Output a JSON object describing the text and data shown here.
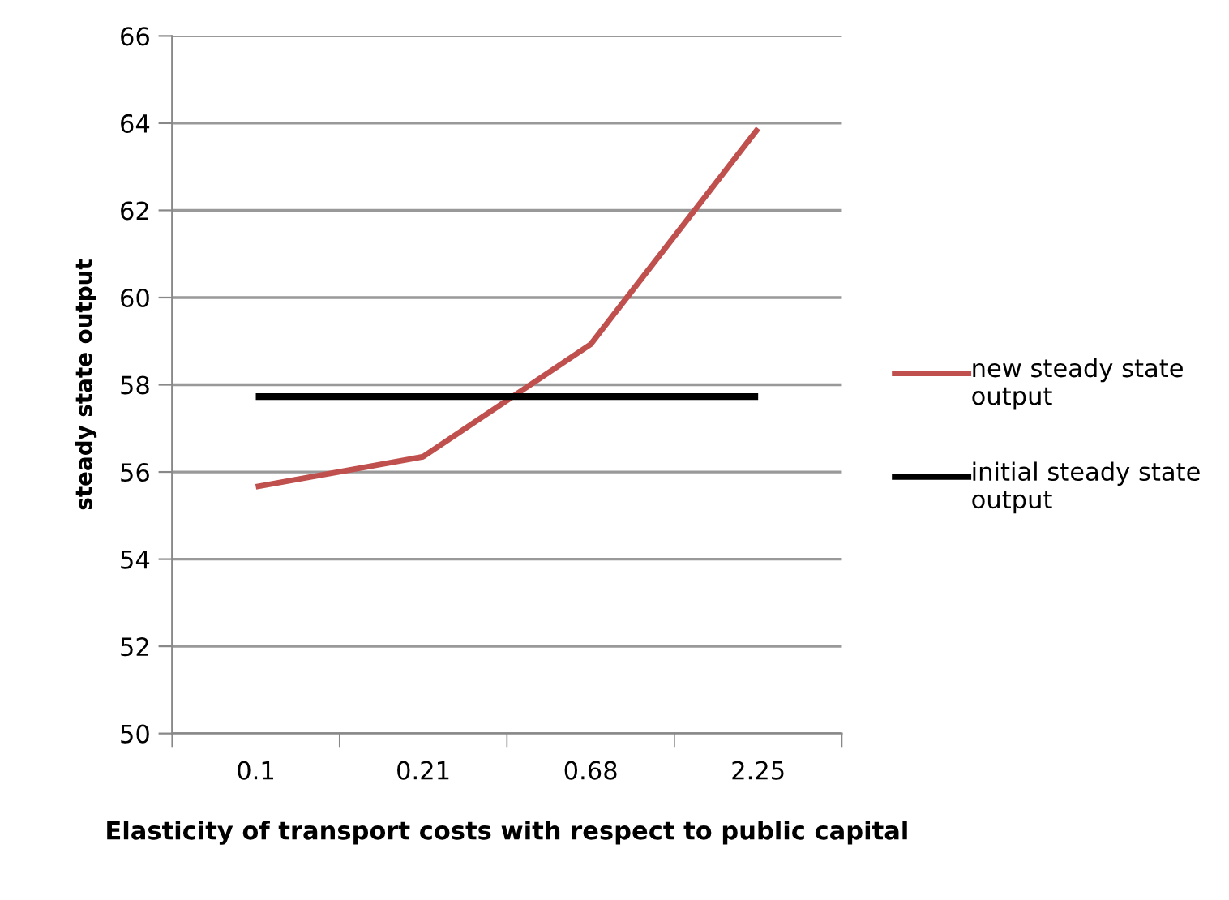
{
  "chart_data": {
    "type": "line",
    "xlabel": "Elasticity of transport costs with respect to public capital",
    "ylabel": "steady state output",
    "categories": [
      "0.1",
      "0.21",
      "0.68",
      "2.25"
    ],
    "series": [
      {
        "name": "new steady state output",
        "color": "#c0504d",
        "values": [
          55.66,
          56.35,
          58.93,
          63.88
        ]
      },
      {
        "name": "initial steady state output",
        "color": "#000000",
        "values": [
          57.73,
          57.73,
          57.73,
          57.73
        ]
      }
    ],
    "ylim": [
      50,
      66
    ],
    "yticks": [
      50,
      52,
      54,
      56,
      58,
      60,
      62,
      64,
      66
    ],
    "grid": "y",
    "legend": "right",
    "marker": "none",
    "line_style": "solid"
  }
}
